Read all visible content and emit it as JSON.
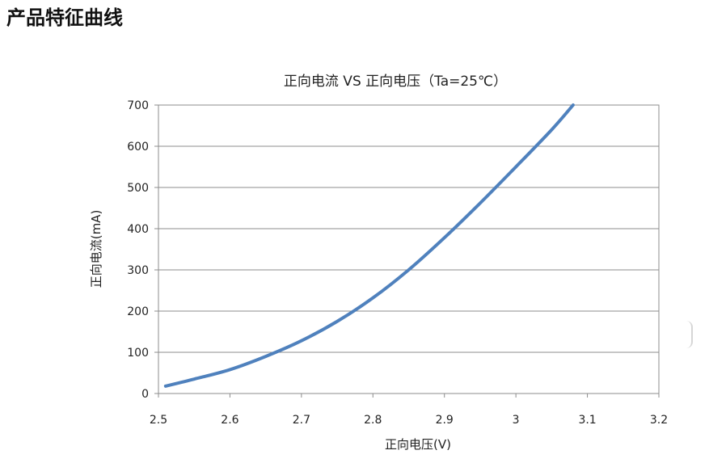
{
  "page": {
    "heading": "产品特征曲线"
  },
  "chart_data": {
    "type": "line",
    "title": "正向电流 VS 正向电压（Ta=25℃）",
    "xlabel": "正向电压(V)",
    "ylabel": "正向电流(mA)",
    "xlim": [
      2.5,
      3.2
    ],
    "ylim": [
      0,
      700
    ],
    "x_ticks": [
      "2.5",
      "2.6",
      "2.7",
      "2.8",
      "2.9",
      "3",
      "3.1",
      "3.2"
    ],
    "y_ticks": [
      "0",
      "100",
      "200",
      "300",
      "400",
      "500",
      "600",
      "700"
    ],
    "grid": "horizontal",
    "series": [
      {
        "color": "#4f81bd",
        "x": [
          2.51,
          2.55,
          2.6,
          2.65,
          2.7,
          2.75,
          2.8,
          2.85,
          2.9,
          2.95,
          3.0,
          3.05,
          3.08
        ],
        "y": [
          18,
          35,
          58,
          90,
          128,
          175,
          232,
          300,
          378,
          462,
          550,
          640,
          700
        ]
      }
    ]
  }
}
